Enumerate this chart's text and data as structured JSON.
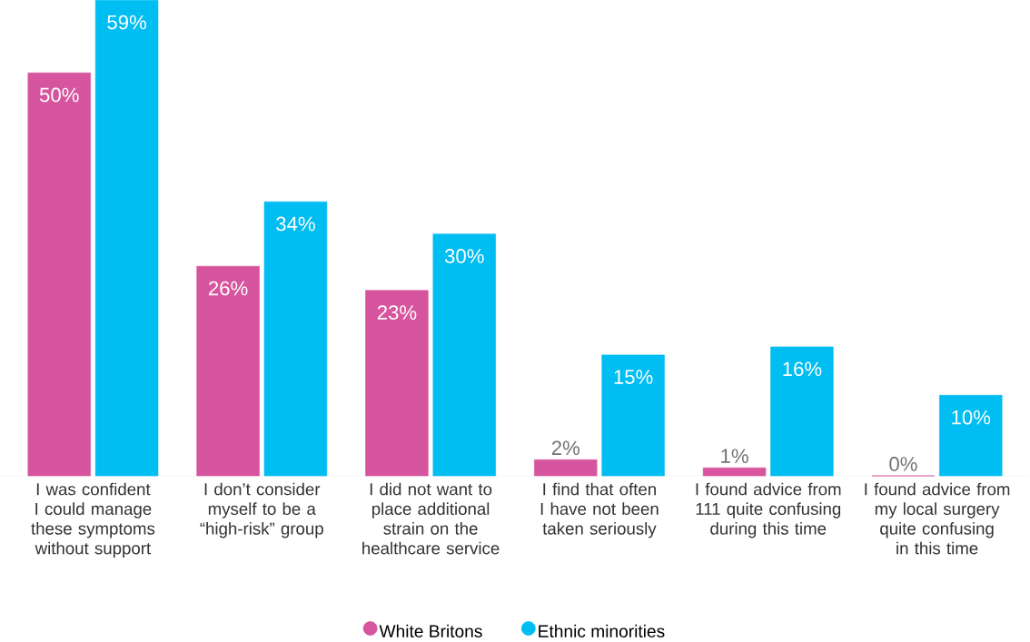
{
  "chart_data": {
    "type": "bar",
    "legend": "bottom",
    "categories": [
      "I was confident I could manage these symptoms without support",
      "I don’t consider myself to be a “high-risk” group",
      "I did not want to place additional strain on the healthcare service",
      "I find that often I have not been taken seriously",
      "I found advice from 111 quite confusing during this time",
      "I found advice from my local surgery quite confusing in this time"
    ],
    "series": [
      {
        "name": "White Britons",
        "color": "#d6559e",
        "values": [
          50,
          26,
          23,
          2,
          1,
          0
        ],
        "value_labels": [
          "50%",
          "26%",
          "23%",
          "2%",
          "1%",
          "0%"
        ]
      },
      {
        "name": "Ethnic minorities",
        "color": "#00bdf2",
        "values": [
          59,
          34,
          30,
          15,
          16,
          10
        ],
        "value_labels": [
          "59%",
          "34%",
          "30%",
          "15%",
          "16%",
          "10%"
        ]
      }
    ]
  }
}
